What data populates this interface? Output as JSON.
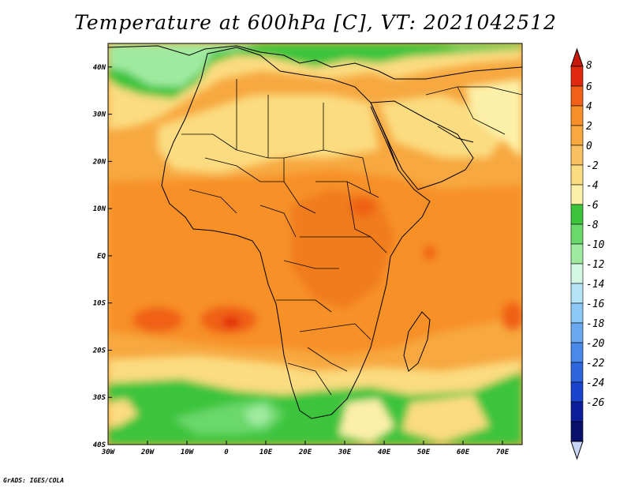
{
  "title": "Temperature at 600hPa [C], VT: 2021042512",
  "credit": "GrADS: IGES/COLA",
  "map": {
    "lon_range": [
      -30,
      75
    ],
    "lat_range": [
      -40,
      45
    ],
    "x_ticks": [
      "30W",
      "20W",
      "10W",
      "0",
      "10E",
      "20E",
      "30E",
      "40E",
      "50E",
      "60E",
      "70E"
    ],
    "y_ticks": [
      "40S",
      "30S",
      "20S",
      "10S",
      "EQ",
      "10N",
      "20N",
      "30N",
      "40N"
    ]
  },
  "colorbar": {
    "labels": [
      "8",
      "6",
      "4",
      "2",
      "0",
      "-2",
      "-4",
      "-6",
      "-8",
      "-10",
      "-12",
      "-14",
      "-16",
      "-18",
      "-20",
      "-22",
      "-24",
      "-26"
    ],
    "colors": [
      "#e02a10",
      "#f06018",
      "#f79028",
      "#f7a840",
      "#f8c060",
      "#fbdc80",
      "#fcf0a8",
      "#3cc43c",
      "#6ad86a",
      "#a0eaa0",
      "#d4f7e4",
      "#b6e4f7",
      "#8cc8f5",
      "#6aa8f0",
      "#4a88ea",
      "#2e66de",
      "#1a44cc",
      "#0c1e9a",
      "#08126a"
    ],
    "top_color": "#c81a0c",
    "bottom_color": "#c8d4f4"
  }
}
